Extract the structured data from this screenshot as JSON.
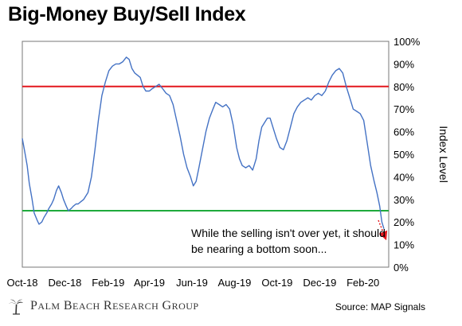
{
  "chart_data": {
    "type": "line",
    "title": "Big-Money Buy/Sell Index",
    "ylabel": "Index Level",
    "ylim": [
      0,
      100
    ],
    "y_ticks": [
      "0%",
      "10%",
      "20%",
      "30%",
      "40%",
      "50%",
      "60%",
      "70%",
      "80%",
      "90%",
      "100%"
    ],
    "x_ticks": [
      "Oct-18",
      "Dec-18",
      "Feb-19",
      "Apr-19",
      "Jun-19",
      "Aug-19",
      "Oct-19",
      "Dec-19",
      "Feb-20"
    ],
    "x_start": "2018-10-01",
    "reference_lines": [
      {
        "value": 80,
        "color": "#e3171d"
      },
      {
        "value": 25,
        "color": "#1faa3c"
      }
    ],
    "series": [
      {
        "color": "#4472c4",
        "points": [
          [
            "2018-10-01",
            57
          ],
          [
            "2018-10-04",
            52
          ],
          [
            "2018-10-08",
            45
          ],
          [
            "2018-10-11",
            37
          ],
          [
            "2018-10-15",
            30
          ],
          [
            "2018-10-18",
            24
          ],
          [
            "2018-10-22",
            21
          ],
          [
            "2018-10-25",
            19
          ],
          [
            "2018-10-29",
            20
          ],
          [
            "2018-11-01",
            22
          ],
          [
            "2018-11-05",
            24
          ],
          [
            "2018-11-08",
            26
          ],
          [
            "2018-11-12",
            28
          ],
          [
            "2018-11-15",
            30
          ],
          [
            "2018-11-19",
            34
          ],
          [
            "2018-11-22",
            36
          ],
          [
            "2018-11-26",
            33
          ],
          [
            "2018-11-29",
            30
          ],
          [
            "2018-12-03",
            27
          ],
          [
            "2018-12-06",
            25
          ],
          [
            "2018-12-10",
            26
          ],
          [
            "2018-12-13",
            27
          ],
          [
            "2018-12-17",
            28
          ],
          [
            "2018-12-20",
            28
          ],
          [
            "2018-12-24",
            29
          ],
          [
            "2018-12-28",
            30
          ],
          [
            "2019-01-03",
            33
          ],
          [
            "2019-01-08",
            40
          ],
          [
            "2019-01-13",
            52
          ],
          [
            "2019-01-18",
            65
          ],
          [
            "2019-01-23",
            76
          ],
          [
            "2019-01-28",
            82
          ],
          [
            "2019-02-02",
            87
          ],
          [
            "2019-02-07",
            89
          ],
          [
            "2019-02-12",
            90
          ],
          [
            "2019-02-17",
            90
          ],
          [
            "2019-02-22",
            91
          ],
          [
            "2019-02-27",
            93
          ],
          [
            "2019-03-03",
            92
          ],
          [
            "2019-03-07",
            88
          ],
          [
            "2019-03-11",
            86
          ],
          [
            "2019-03-15",
            85
          ],
          [
            "2019-03-19",
            84
          ],
          [
            "2019-03-23",
            80
          ],
          [
            "2019-03-27",
            78
          ],
          [
            "2019-04-01",
            78
          ],
          [
            "2019-04-05",
            79
          ],
          [
            "2019-04-10",
            80
          ],
          [
            "2019-04-15",
            81
          ],
          [
            "2019-04-20",
            79
          ],
          [
            "2019-04-25",
            77
          ],
          [
            "2019-04-30",
            76
          ],
          [
            "2019-05-05",
            72
          ],
          [
            "2019-05-10",
            65
          ],
          [
            "2019-05-15",
            58
          ],
          [
            "2019-05-20",
            50
          ],
          [
            "2019-05-25",
            44
          ],
          [
            "2019-05-30",
            40
          ],
          [
            "2019-06-03",
            36
          ],
          [
            "2019-06-07",
            38
          ],
          [
            "2019-06-11",
            44
          ],
          [
            "2019-06-16",
            52
          ],
          [
            "2019-06-21",
            60
          ],
          [
            "2019-06-26",
            66
          ],
          [
            "2019-07-01",
            70
          ],
          [
            "2019-07-05",
            73
          ],
          [
            "2019-07-10",
            72
          ],
          [
            "2019-07-15",
            71
          ],
          [
            "2019-07-20",
            72
          ],
          [
            "2019-07-25",
            70
          ],
          [
            "2019-07-30",
            63
          ],
          [
            "2019-08-04",
            53
          ],
          [
            "2019-08-08",
            48
          ],
          [
            "2019-08-12",
            45
          ],
          [
            "2019-08-17",
            44
          ],
          [
            "2019-08-22",
            45
          ],
          [
            "2019-08-27",
            43
          ],
          [
            "2019-09-01",
            48
          ],
          [
            "2019-09-05",
            56
          ],
          [
            "2019-09-09",
            62
          ],
          [
            "2019-09-13",
            64
          ],
          [
            "2019-09-17",
            66
          ],
          [
            "2019-09-21",
            66
          ],
          [
            "2019-09-25",
            62
          ],
          [
            "2019-09-30",
            57
          ],
          [
            "2019-10-05",
            53
          ],
          [
            "2019-10-10",
            52
          ],
          [
            "2019-10-15",
            56
          ],
          [
            "2019-10-20",
            62
          ],
          [
            "2019-10-25",
            68
          ],
          [
            "2019-10-30",
            71
          ],
          [
            "2019-11-04",
            73
          ],
          [
            "2019-11-09",
            74
          ],
          [
            "2019-11-14",
            75
          ],
          [
            "2019-11-19",
            74
          ],
          [
            "2019-11-24",
            76
          ],
          [
            "2019-11-29",
            77
          ],
          [
            "2019-12-04",
            76
          ],
          [
            "2019-12-09",
            78
          ],
          [
            "2019-12-14",
            82
          ],
          [
            "2019-12-19",
            85
          ],
          [
            "2019-12-24",
            87
          ],
          [
            "2019-12-29",
            88
          ],
          [
            "2020-01-03",
            86
          ],
          [
            "2020-01-08",
            80
          ],
          [
            "2020-01-13",
            75
          ],
          [
            "2020-01-18",
            70
          ],
          [
            "2020-01-23",
            69
          ],
          [
            "2020-01-28",
            68
          ],
          [
            "2020-02-02",
            65
          ],
          [
            "2020-02-07",
            55
          ],
          [
            "2020-02-12",
            45
          ],
          [
            "2020-02-17",
            38
          ],
          [
            "2020-02-21",
            33
          ],
          [
            "2020-02-25",
            27
          ],
          [
            "2020-02-28",
            20
          ],
          [
            "2020-03-02",
            17
          ]
        ]
      }
    ],
    "annotation": "While the selling isn't over yet, it should be nearing a bottom soon...",
    "arrow_color": "#e3171d",
    "gridlines": false
  },
  "footer": {
    "brand": "Palm Beach Research Group",
    "source": "Source: MAP Signals"
  }
}
